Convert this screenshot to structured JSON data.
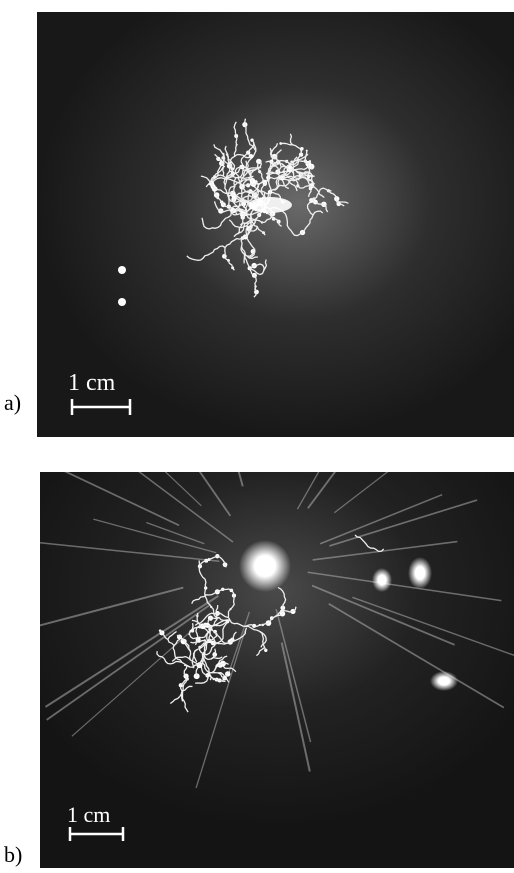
{
  "panels": [
    {
      "label": "a)",
      "scale_bar": "1 cm"
    },
    {
      "label": "b)",
      "scale_bar": "1 cm"
    }
  ]
}
